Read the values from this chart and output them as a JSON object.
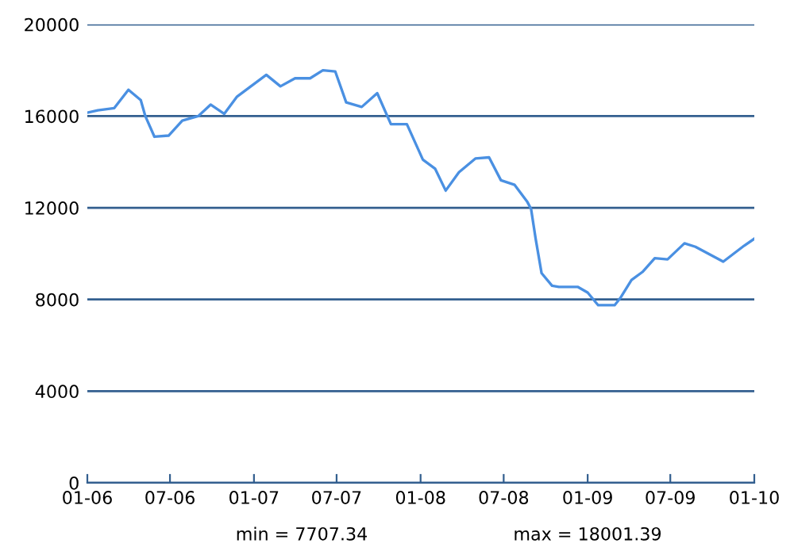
{
  "chart_data": {
    "type": "line",
    "color": "#4a90e2",
    "grid": "y",
    "x": [
      "2006-01-01",
      "2006-01-24",
      "2006-03-01",
      "2006-04-01",
      "2006-04-28",
      "2006-05-08",
      "2006-05-28",
      "2006-06-28",
      "2006-07-28",
      "2006-09-01",
      "2006-09-28",
      "2006-10-28",
      "2006-11-25",
      "2007-01-28",
      "2007-02-28",
      "2007-04-01",
      "2007-05-04",
      "2007-06-01",
      "2007-06-28",
      "2007-07-22",
      "2007-08-25",
      "2007-09-28",
      "2007-10-28",
      "2007-12-02",
      "2008-01-06",
      "2008-02-02",
      "2008-02-25",
      "2008-03-25",
      "2008-04-30",
      "2008-05-30",
      "2008-06-25",
      "2008-07-25",
      "2008-08-22",
      "2008-08-30",
      "2008-09-09",
      "2008-09-22",
      "2008-10-15",
      "2008-10-30",
      "2008-12-10",
      "2009-01-01",
      "2009-01-24",
      "2009-03-01",
      "2009-03-13",
      "2009-04-07",
      "2009-05-01",
      "2009-05-28",
      "2009-06-25",
      "2009-08-01",
      "2009-08-25",
      "2009-10-25",
      "2009-12-10",
      "2010-01-01"
    ],
    "values": [
      16150,
      16250,
      16350,
      17150,
      16700,
      16000,
      15100,
      15150,
      15800,
      16000,
      16500,
      16100,
      16850,
      17800,
      17300,
      17650,
      17650,
      18000,
      17950,
      16600,
      16400,
      17000,
      15650,
      15650,
      14100,
      13700,
      12750,
      13550,
      14150,
      14200,
      13200,
      13000,
      12250,
      11950,
      10650,
      9150,
      8600,
      8550,
      8550,
      8300,
      7750,
      7750,
      8050,
      8850,
      9200,
      9800,
      9750,
      10450,
      10300,
      9650,
      10350,
      10650
    ],
    "xlim": [
      "2006-01-01",
      "2010-01-01"
    ],
    "xticks": [
      {
        "value": "2006-01-01",
        "label": "01-06"
      },
      {
        "value": "2006-07-01",
        "label": "07-06"
      },
      {
        "value": "2007-01-01",
        "label": "01-07"
      },
      {
        "value": "2007-07-01",
        "label": "07-07"
      },
      {
        "value": "2008-01-01",
        "label": "01-08"
      },
      {
        "value": "2008-07-01",
        "label": "07-08"
      },
      {
        "value": "2009-01-01",
        "label": "01-09"
      },
      {
        "value": "2009-07-01",
        "label": "07-09"
      },
      {
        "value": "2010-01-01",
        "label": "01-10"
      }
    ],
    "ylim": [
      0,
      20000
    ],
    "yticks": [
      0,
      4000,
      8000,
      12000,
      16000,
      20000
    ],
    "annotations": [
      "min = 7707.34",
      "max = 18001.39"
    ]
  }
}
